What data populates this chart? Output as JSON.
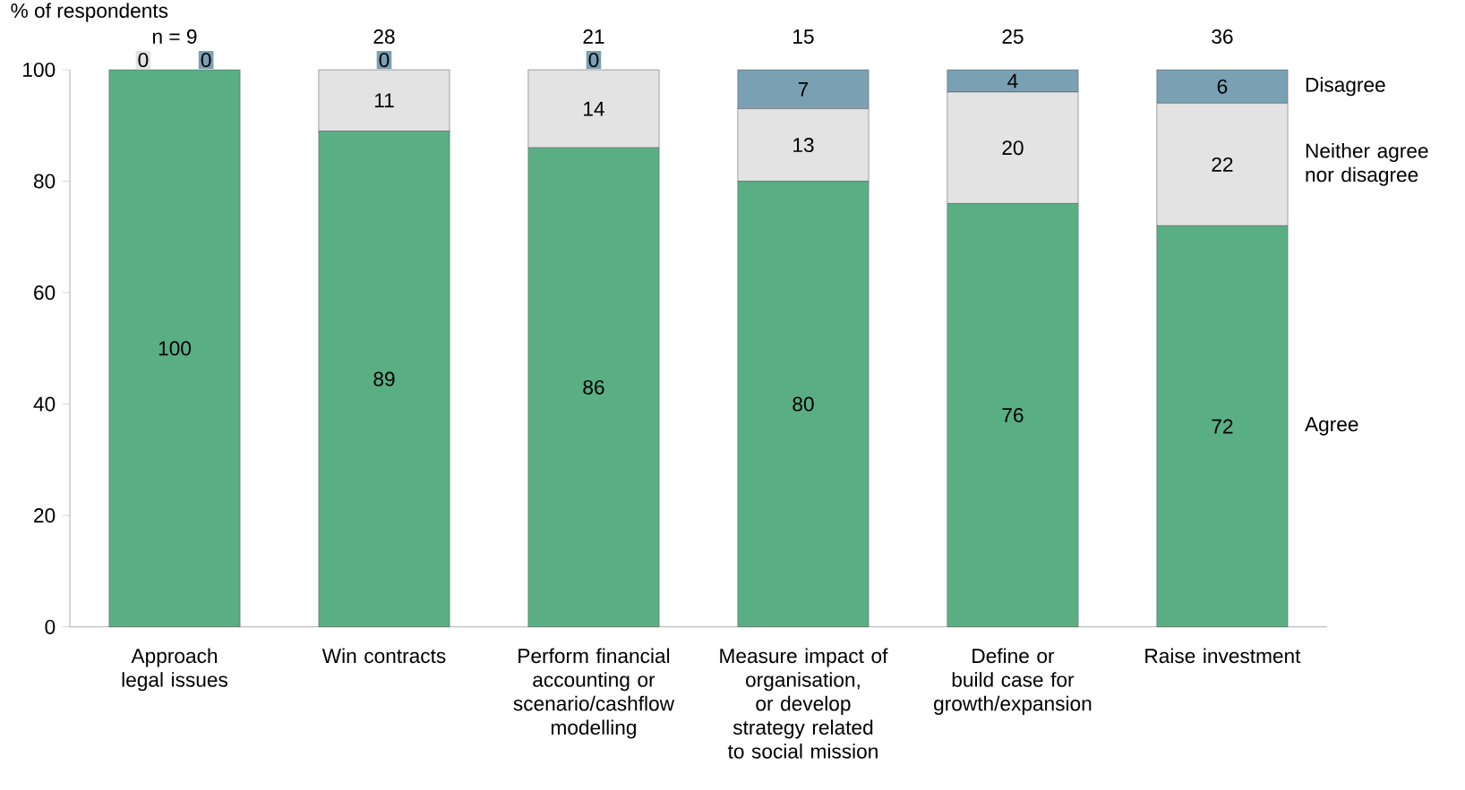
{
  "chart_data": {
    "type": "bar",
    "stacked": true,
    "data_labels": true,
    "ylabel": "% of respondents",
    "categories": [
      "Approach legal issues",
      "Win contracts",
      "Perform financial accounting or scenario/cashflow modelling",
      "Measure impact of organisation, or develop strategy related to social mission",
      "Define or build case for growth/expansion",
      "Raise investment"
    ],
    "series": [
      {
        "name": "Agree",
        "color": "#5aae84",
        "values": [
          100,
          89,
          86,
          80,
          76,
          72
        ]
      },
      {
        "name": "Neither agree nor disagree",
        "color": "#e3e3e3",
        "values": [
          0,
          11,
          14,
          13,
          20,
          22
        ]
      },
      {
        "name": "Disagree",
        "color": "#7aa0b4",
        "values": [
          0,
          0,
          0,
          7,
          4,
          6
        ]
      }
    ],
    "annotations": [
      "n = 9",
      "28",
      "21",
      "15",
      "25",
      "36"
    ],
    "ylim": [
      0,
      100
    ],
    "yticks": [
      0,
      20,
      40,
      60,
      80,
      100
    ]
  }
}
